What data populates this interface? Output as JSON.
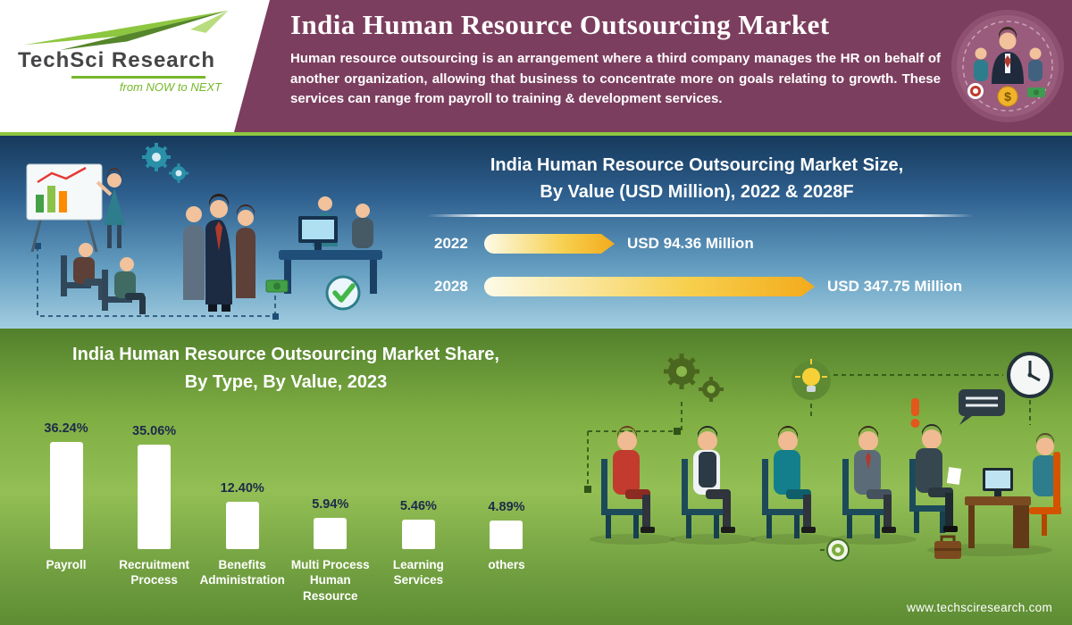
{
  "logo": {
    "brand": "TechSci Research",
    "tagline": "from NOW to NEXT"
  },
  "header": {
    "title": "India Human Resource Outsourcing Market",
    "description": "Human resource outsourcing is an arrangement where a third company manages the HR on behalf of another organization, allowing that business to concentrate more on goals relating to growth. These services can range from payroll to training & development services."
  },
  "market_size": {
    "title_line1": "India Human Resource Outsourcing Market Size,",
    "title_line2": "By Value (USD Million), 2022 & 2028F"
  },
  "market_share": {
    "title_line1": "India Human Resource Outsourcing Market Share,",
    "title_line2": "By Type, By Value, 2023"
  },
  "footer": {
    "website": "www.techsciresearch.com"
  },
  "chart_data": [
    {
      "type": "bar",
      "orientation": "horizontal",
      "title": "India Human Resource Outsourcing Market Size, By Value (USD Million), 2022 & 2028F",
      "categories": [
        "2022",
        "2028"
      ],
      "values": [
        94.36,
        347.75
      ],
      "value_labels": [
        "USD 94.36 Million",
        "USD 347.75 Million"
      ],
      "unit": "USD Million",
      "bar_style": "arrow",
      "bar_gradient": [
        "#fdfbe8",
        "#f3ab1c"
      ]
    },
    {
      "type": "bar",
      "orientation": "vertical",
      "title": "India Human Resource Outsourcing Market Share, By Type, By Value, 2023",
      "categories": [
        "Payroll",
        "Recruitment Process",
        "Benefits Administration",
        "Multi Process Human Resource",
        "Learning Services",
        "others"
      ],
      "values": [
        36.24,
        35.06,
        12.4,
        5.94,
        5.46,
        4.89
      ],
      "value_labels": [
        "36.24%",
        "35.06%",
        "12.40%",
        "5.94%",
        "5.46%",
        "4.89%"
      ],
      "unit": "%",
      "bar_color": "#ffffff"
    }
  ],
  "icons": [
    "gears-icon",
    "lightbulb-icon",
    "clock-icon",
    "speech-bubble-icon",
    "exclamation-icon",
    "target-icon",
    "check-badge-icon",
    "briefcase-icon",
    "dollar-coin-icon",
    "banknote-icon"
  ],
  "colors": {
    "header_purple": "#7c3e5e",
    "accent_green": "#8dc63f",
    "blue_top": "#16395b",
    "blue_bottom": "#a3cde0",
    "green_mid": "#93bf55",
    "bar_gold": "#f3ab1c",
    "percent_label": "#1d2b4a"
  }
}
